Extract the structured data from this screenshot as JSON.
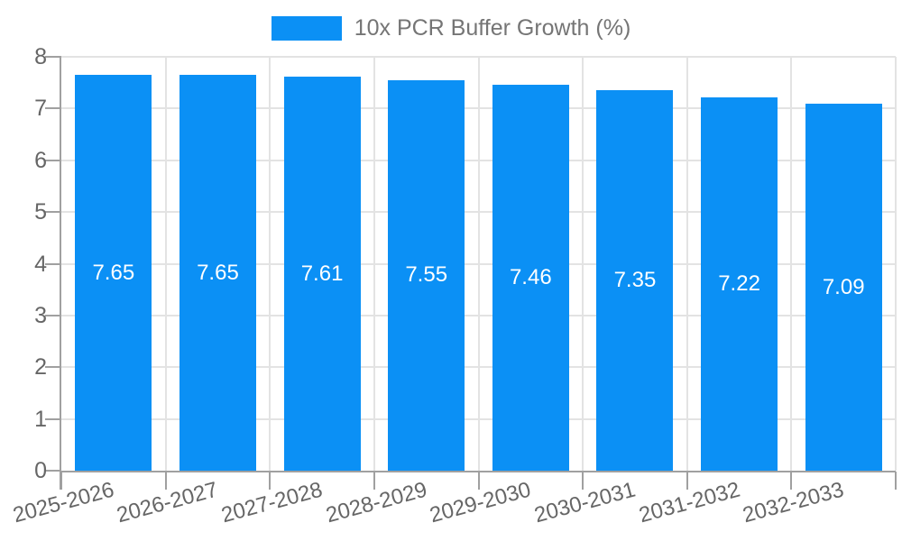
{
  "chart_data": {
    "type": "bar",
    "legend_label": "10x PCR Buffer Growth (%)",
    "legend_position": "top",
    "categories": [
      "2025-2026",
      "2026-2027",
      "2027-2028",
      "2028-2029",
      "2029-2030",
      "2030-2031",
      "2031-2032",
      "2032-2033"
    ],
    "values": [
      7.65,
      7.65,
      7.61,
      7.55,
      7.46,
      7.35,
      7.22,
      7.09
    ],
    "value_labels": [
      "7.65",
      "7.65",
      "7.61",
      "7.55",
      "7.46",
      "7.35",
      "7.22",
      "7.09"
    ],
    "ylim": [
      0,
      8
    ],
    "y_ticks": [
      "0",
      "1",
      "2",
      "3",
      "4",
      "5",
      "6",
      "7",
      "8"
    ],
    "grid": true,
    "colors": {
      "bar": "#0b90f5",
      "grid": "#e3e3e3",
      "axis": "#a0a0a0",
      "tick_label": "#666666",
      "legend_text": "#757575",
      "bar_label": "#ffffff",
      "background": "#ffffff"
    }
  }
}
